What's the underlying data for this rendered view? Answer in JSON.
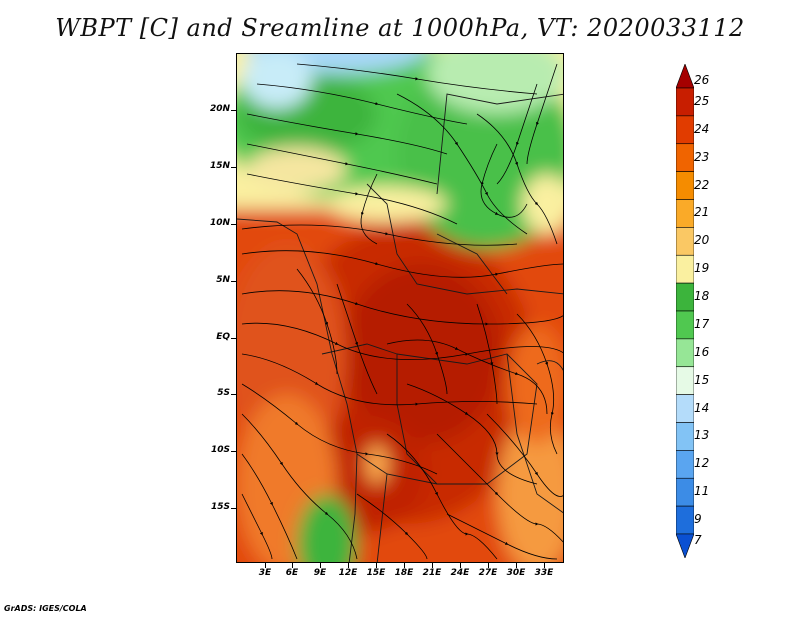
{
  "title": "WBPT [C] and Sreamline at 1000hPa, VT: 2020033112",
  "credit": "GrADS: IGES/COLA",
  "lat_labels": [
    "20N",
    "15N",
    "10N",
    "5N",
    "EQ",
    "5S",
    "10S",
    "15S"
  ],
  "lon_labels": [
    "3E",
    "6E",
    "9E",
    "12E",
    "15E",
    "18E",
    "21E",
    "24E",
    "27E",
    "30E",
    "33E"
  ],
  "colorbar": {
    "labels": [
      "26",
      "25",
      "24",
      "23",
      "22",
      "21",
      "20",
      "19",
      "18",
      "17",
      "16",
      "15",
      "14",
      "13",
      "12",
      "11",
      "9",
      "7"
    ],
    "colors": [
      "#a50000",
      "#c81e00",
      "#e13c00",
      "#f06400",
      "#f58c00",
      "#faaa28",
      "#fac864",
      "#faf0a0",
      "#3cb43c",
      "#50c850",
      "#96e696",
      "#e6fae6",
      "#b4dcfa",
      "#82c3f5",
      "#5aa5f0",
      "#3c8ce6",
      "#1e6edc",
      "#0a50d2"
    ]
  }
}
